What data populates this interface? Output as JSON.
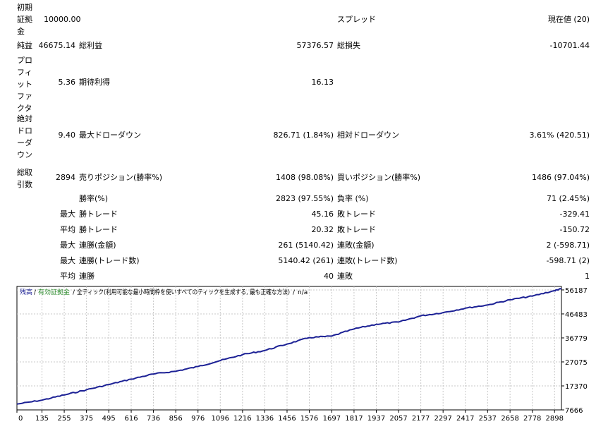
{
  "report": {
    "initial_deposit": {
      "label": "初期証拠金",
      "value": "10000.00"
    },
    "spread": {
      "label": "スプレッド",
      "value": "現在値 (20)"
    },
    "net_profit": {
      "label": "純益",
      "value": "46675.14"
    },
    "gross_profit": {
      "label": "総利益",
      "value": "57376.57"
    },
    "gross_loss": {
      "label": "総損失",
      "value": "-10701.44"
    },
    "profit_factor": {
      "label": "プロフィットファクタ",
      "value": "5.36"
    },
    "expected_payoff": {
      "label": "期待利得",
      "value": "16.13"
    },
    "absolute_drawdown": {
      "label": "絶対ドローダウン",
      "value": "9.40"
    },
    "max_drawdown": {
      "label": "最大ドローダウン",
      "value": "826.71 (1.84%)"
    },
    "relative_drawdown": {
      "label": "相対ドローダウン",
      "value": "3.61% (420.51)"
    },
    "total_trades": {
      "label": "総取引数",
      "value": "2894"
    },
    "short_positions": {
      "label": "売りポジション(勝率%)",
      "value": "1408 (98.08%)"
    },
    "long_positions": {
      "label": "買いポジション(勝率%)",
      "value": "1486 (97.04%)"
    },
    "win_rate": {
      "label": "勝率(%)",
      "value": "2823 (97.55%)"
    },
    "loss_rate": {
      "label": "負率 (%)",
      "value": "71 (2.45%)"
    },
    "largest": {
      "prefix": "最大",
      "win_label": "勝トレード",
      "win_value": "45.16",
      "loss_label": "敗トレード",
      "loss_value": "-329.41"
    },
    "average": {
      "prefix": "平均",
      "win_label": "勝トレード",
      "win_value": "20.32",
      "loss_label": "敗トレード",
      "loss_value": "-150.72"
    },
    "max_consec_count": {
      "prefix": "最大",
      "win_label": "連勝(金額)",
      "win_value": "261 (5140.42)",
      "loss_label": "連敗(金額)",
      "loss_value": "2 (-598.71)"
    },
    "max_consec_amount": {
      "prefix": "最大",
      "win_label": "連勝(トレード数)",
      "win_value": "5140.42 (261)",
      "loss_label": "連敗(トレード数)",
      "loss_value": "-598.71 (2)"
    },
    "avg_consec": {
      "prefix": "平均",
      "win_label": "連勝",
      "win_value": "40",
      "loss_label": "連敗",
      "loss_value": "1"
    }
  },
  "chart_header": {
    "balance": "残高",
    "sep1": "/",
    "equity": "有効証拠金",
    "sep2": "/",
    "model": "全ティック(利用可能な最小時間枠を使いすべてのティックを生成する, 最も正確な方法)",
    "sep3": "/",
    "extra": "n/a"
  },
  "colors": {
    "balance_line": "#1c2195",
    "balance_label": "#1c2195",
    "equity_label": "#2e8b2e",
    "grid": "#c8c8c8"
  },
  "chart_data": {
    "type": "line",
    "title": "",
    "xlabel": "",
    "ylabel": "",
    "x_ticks": [
      0,
      135,
      255,
      375,
      495,
      616,
      736,
      856,
      976,
      1096,
      1216,
      1336,
      1456,
      1576,
      1697,
      1817,
      1937,
      2057,
      2177,
      2297,
      2417,
      2537,
      2658,
      2778,
      2898
    ],
    "y_ticks": [
      7666,
      17370,
      27075,
      36779,
      46483,
      56187
    ],
    "xlim": [
      0,
      2935
    ],
    "ylim": [
      7666,
      57600
    ],
    "grid": true,
    "series": [
      {
        "name": "残高",
        "x": [
          0,
          135,
          255,
          375,
          495,
          616,
          736,
          856,
          976,
          1096,
          1216,
          1336,
          1456,
          1576,
          1697,
          1817,
          1937,
          2057,
          2177,
          2297,
          2417,
          2537,
          2658,
          2778,
          2898,
          2935
        ],
        "y": [
          10000,
          11600,
          13700,
          15800,
          17900,
          20100,
          22200,
          23300,
          25200,
          27600,
          30000,
          31700,
          34300,
          36900,
          37500,
          40400,
          42300,
          43200,
          45700,
          47000,
          48800,
          50100,
          52200,
          53700,
          55900,
          56676
        ]
      }
    ]
  }
}
